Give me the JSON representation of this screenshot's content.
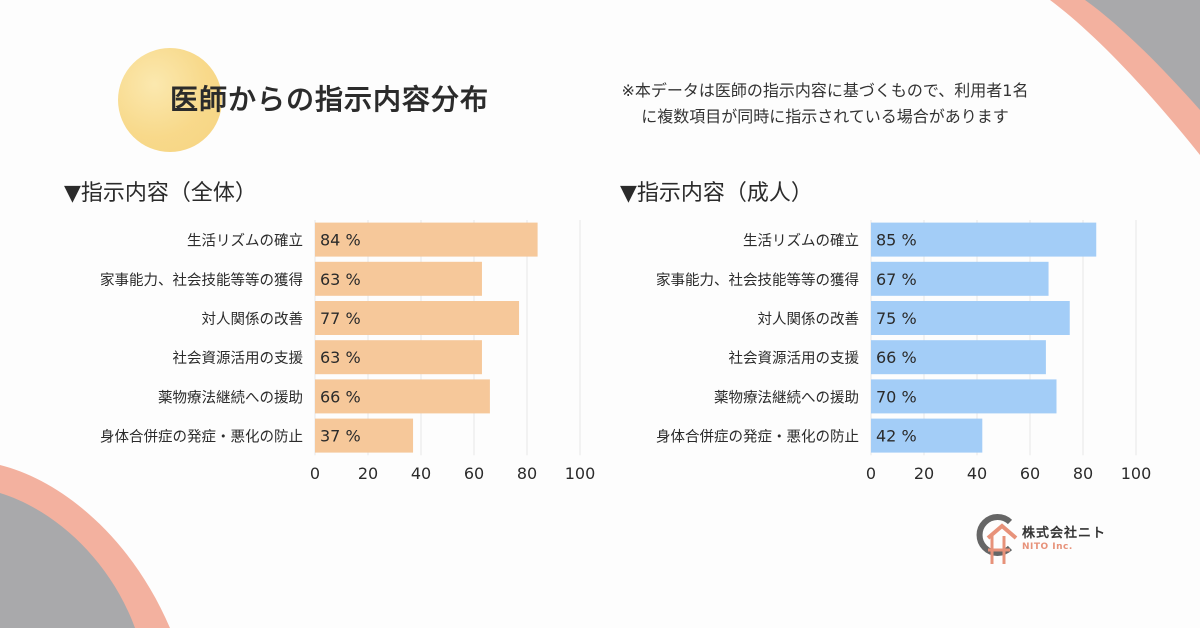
{
  "header": {
    "title": "医師からの指示内容分布",
    "note_line1": "※本データは医師の指示内容に基づくもので、利用者1名",
    "note_line2": "に複数項目が同時に指示されている場合があります"
  },
  "brand": {
    "name": "株式会社ニト",
    "sub": "NITO Inc.",
    "colors": {
      "peach": "#f3b19f",
      "gray": "#a9a9ab",
      "yellow": "#f7d57e",
      "orange_bar": "#f6c89a",
      "blue_bar": "#a3cdf7",
      "logo_orange": "#e7927a",
      "logo_gray": "#666666"
    }
  },
  "chart_data": [
    {
      "type": "bar",
      "orientation": "horizontal",
      "title": "▼指示内容（全体）",
      "categories": [
        "生活リズムの確立",
        "家事能力、社会技能等等の獲得",
        "対人関係の改善",
        "社会資源活用の支援",
        "薬物療法継続への援助",
        "身体合併症の発症・悪化の防止"
      ],
      "values": [
        84,
        63,
        77,
        63,
        66,
        37
      ],
      "value_suffix": " %",
      "xlim": [
        0,
        100
      ],
      "xticks": [
        0,
        20,
        40,
        60,
        80,
        100
      ],
      "color": "#f6c89a",
      "grid": true
    },
    {
      "type": "bar",
      "orientation": "horizontal",
      "title": "▼指示内容（成人）",
      "categories": [
        "生活リズムの確立",
        "家事能力、社会技能等等の獲得",
        "対人関係の改善",
        "社会資源活用の支援",
        "薬物療法継続への援助",
        "身体合併症の発症・悪化の防止"
      ],
      "values": [
        85,
        67,
        75,
        66,
        70,
        42
      ],
      "value_suffix": " %",
      "xlim": [
        0,
        100
      ],
      "xticks": [
        0,
        20,
        40,
        60,
        80,
        100
      ],
      "color": "#a3cdf7",
      "grid": true
    }
  ]
}
